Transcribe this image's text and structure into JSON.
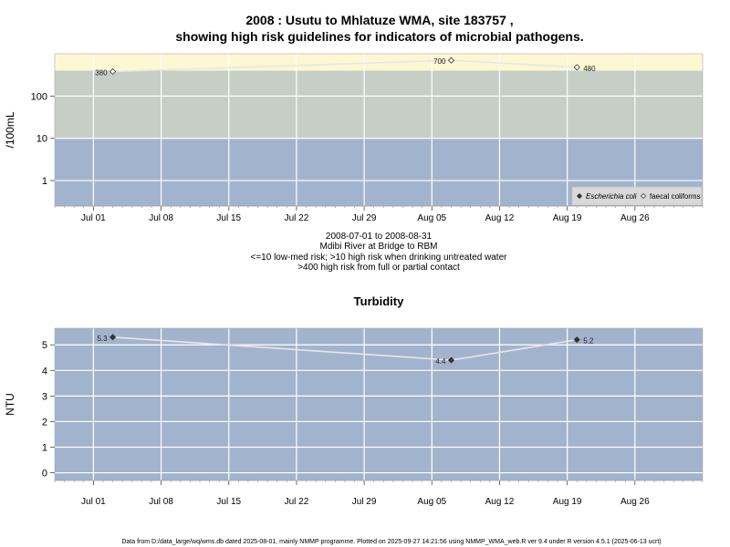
{
  "header": {
    "title_line1": "2008 : Usutu to Mhlatuze WMA, site 183757 ,",
    "title_line2": "showing high risk guidelines for indicators of microbial pathogens."
  },
  "period_caption": {
    "line1": "2008-07-01 to 2008-08-31",
    "line2": "Mdibi River at Bridge to RBM",
    "line3": "<=10 low-med risk; >10 high risk when drinking untreated water",
    "line4": ">400 high risk from full or partial contact"
  },
  "footer": {
    "text": "Data from D:/data_large/wq/wms.db dated 2025-08-01, mainly NMMP programme. Plotted on 2025-09-27 14:21:56 using NMMP_WMA_web.R ver 9.4 under R version 4.5.1 (2025-06-13 ucrt)"
  },
  "colors": {
    "low_band": "#a2b4cd",
    "mid_band": "#c5cfc5",
    "high_band": "#fdf8d2",
    "line": "#e6e6e6",
    "grid": "#ffffff",
    "point": "#333333"
  },
  "chart_data": [
    {
      "type": "line",
      "title": "",
      "xlabel": "",
      "ylabel": "/100mL",
      "y_scale": "log",
      "ylim": [
        0.25,
        1000
      ],
      "xlim": [
        "2008-06-27",
        "2008-09-02"
      ],
      "x_ticks": [
        {
          "date": "2008-07-01",
          "label": "Jul 01"
        },
        {
          "date": "2008-07-08",
          "label": "Jul 08"
        },
        {
          "date": "2008-07-15",
          "label": "Jul 15"
        },
        {
          "date": "2008-07-22",
          "label": "Jul 22"
        },
        {
          "date": "2008-07-29",
          "label": "Jul 29"
        },
        {
          "date": "2008-08-05",
          "label": "Aug 05"
        },
        {
          "date": "2008-08-12",
          "label": "Aug 12"
        },
        {
          "date": "2008-08-19",
          "label": "Aug 19"
        },
        {
          "date": "2008-08-26",
          "label": "Aug 26"
        }
      ],
      "y_ticks": [
        {
          "value": 1,
          "label": "1"
        },
        {
          "value": 10,
          "label": "10"
        },
        {
          "value": 100,
          "label": "100"
        }
      ],
      "bands": [
        {
          "from": 0.25,
          "to": 10,
          "color": "#a2b4cd"
        },
        {
          "from": 10,
          "to": 400,
          "color": "#c5cfc5"
        },
        {
          "from": 400,
          "to": 1000,
          "color": "#fdf8d2"
        }
      ],
      "legend": {
        "placement": "bottom-right",
        "entries": [
          {
            "label": "Escherichia coli",
            "marker": "filled-diamond",
            "italic": true
          },
          {
            "label": "faecal coliforms",
            "marker": "open-diamond",
            "italic": false
          }
        ]
      },
      "series": [
        {
          "name": "faecal coliforms",
          "marker": "open-diamond",
          "x": [
            "2008-07-03",
            "2008-08-07",
            "2008-08-20"
          ],
          "y": [
            380,
            700,
            480
          ],
          "point_labels": [
            "380",
            "700",
            "480"
          ]
        }
      ]
    },
    {
      "type": "line",
      "title": "Turbidity",
      "xlabel": "",
      "ylabel": "NTU",
      "y_scale": "linear",
      "ylim": [
        -0.3,
        5.65
      ],
      "xlim": [
        "2008-06-27",
        "2008-09-02"
      ],
      "x_ticks": [
        {
          "date": "2008-07-01",
          "label": "Jul 01"
        },
        {
          "date": "2008-07-08",
          "label": "Jul 08"
        },
        {
          "date": "2008-07-15",
          "label": "Jul 15"
        },
        {
          "date": "2008-07-22",
          "label": "Jul 22"
        },
        {
          "date": "2008-07-29",
          "label": "Jul 29"
        },
        {
          "date": "2008-08-05",
          "label": "Aug 05"
        },
        {
          "date": "2008-08-12",
          "label": "Aug 12"
        },
        {
          "date": "2008-08-19",
          "label": "Aug 19"
        },
        {
          "date": "2008-08-26",
          "label": "Aug 26"
        }
      ],
      "y_ticks": [
        {
          "value": 0,
          "label": "0"
        },
        {
          "value": 1,
          "label": "1"
        },
        {
          "value": 2,
          "label": "2"
        },
        {
          "value": 3,
          "label": "3"
        },
        {
          "value": 4,
          "label": "4"
        },
        {
          "value": 5,
          "label": "5"
        }
      ],
      "series": [
        {
          "marker": "filled-diamond",
          "x": [
            "2008-07-03",
            "2008-08-07",
            "2008-08-20"
          ],
          "y": [
            5.3,
            4.4,
            5.2
          ],
          "point_labels": [
            "5.3",
            "4.4",
            "5.2"
          ]
        }
      ]
    }
  ]
}
